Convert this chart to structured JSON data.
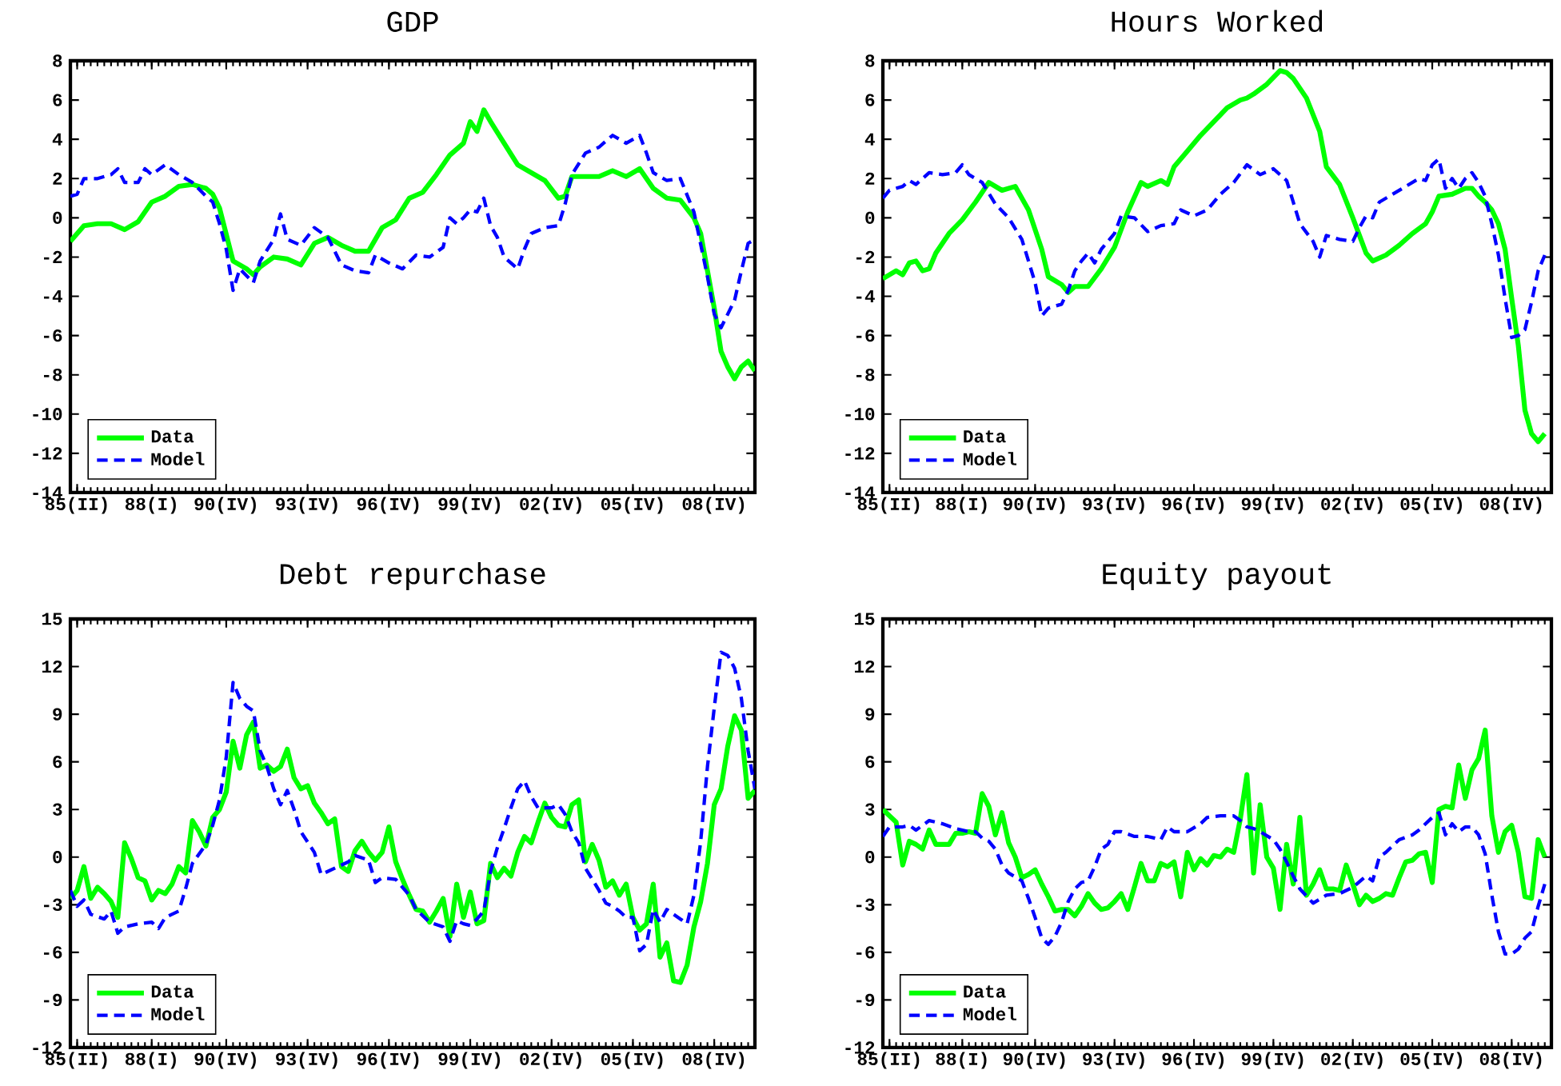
{
  "chart_data": [
    {
      "type": "line",
      "title": "GDP",
      "xlim": [
        "1985-01",
        "2010-04"
      ],
      "ylim": [
        -14,
        8
      ],
      "legend": "bottom left",
      "xticks": [
        {
          "value": "1985-04",
          "label": "85(II)"
        },
        {
          "value": "1988-01",
          "label": "88(I)"
        },
        {
          "value": "1990-10",
          "label": "90(IV)"
        },
        {
          "value": "1993-10",
          "label": "93(IV)"
        },
        {
          "value": "1996-10",
          "label": "96(IV)"
        },
        {
          "value": "1999-10",
          "label": "99(IV)"
        },
        {
          "value": "2002-10",
          "label": "02(IV)"
        },
        {
          "value": "2005-10",
          "label": "05(IV)"
        },
        {
          "value": "2008-10",
          "label": "08(IV)"
        }
      ],
      "yticks": [
        -14,
        -12,
        -10,
        -8,
        -6,
        -4,
        -2,
        0,
        2,
        4,
        6,
        8
      ],
      "series": [
        {
          "name": "Data",
          "color": "#00ff00",
          "line_style": "solid",
          "x": [
            "1985-01",
            "1985-07",
            "1986-01",
            "1986-07",
            "1987-01",
            "1987-07",
            "1988-01",
            "1988-07",
            "1989-01",
            "1989-07",
            "1990-01",
            "1990-04",
            "1990-07",
            "1991-01",
            "1991-07",
            "1991-10",
            "1992-01",
            "1992-07",
            "1993-01",
            "1993-07",
            "1994-01",
            "1994-07",
            "1995-01",
            "1995-07",
            "1996-01",
            "1996-07",
            "1997-01",
            "1997-07",
            "1998-01",
            "1998-07",
            "1999-01",
            "1999-07",
            "1999-10",
            "2000-01",
            "2000-04",
            "2000-07",
            "2001-01",
            "2001-07",
            "2002-01",
            "2002-07",
            "2003-01",
            "2003-04",
            "2003-07",
            "2004-01",
            "2004-07",
            "2005-01",
            "2005-07",
            "2006-01",
            "2006-07",
            "2007-01",
            "2007-07",
            "2008-01",
            "2008-04",
            "2008-07",
            "2008-10",
            "2009-01",
            "2009-04",
            "2009-07",
            "2009-10",
            "2010-01",
            "2010-04"
          ],
          "values": [
            -1.2,
            -0.4,
            -0.3,
            -0.3,
            -0.6,
            -0.2,
            0.8,
            1.1,
            1.6,
            1.7,
            1.5,
            1.2,
            0.5,
            -2.2,
            -2.6,
            -2.9,
            -2.5,
            -2.0,
            -2.1,
            -2.4,
            -1.3,
            -1.0,
            -1.4,
            -1.7,
            -1.7,
            -0.5,
            -0.1,
            1.0,
            1.3,
            2.2,
            3.2,
            3.8,
            4.9,
            4.4,
            5.5,
            4.9,
            3.8,
            2.7,
            2.3,
            1.9,
            1.0,
            1.1,
            2.1,
            2.1,
            2.1,
            2.4,
            2.1,
            2.5,
            1.5,
            1.0,
            0.9,
            0.0,
            -0.8,
            -2.7,
            -4.6,
            -6.8,
            -7.6,
            -8.2,
            -7.6,
            -7.3,
            -7.8
          ]
        },
        {
          "name": "Model",
          "color": "#0000ff",
          "line_style": "dashed",
          "x": [
            "1985-01",
            "1985-04",
            "1985-07",
            "1986-01",
            "1986-07",
            "1986-10",
            "1987-01",
            "1987-07",
            "1987-10",
            "1988-01",
            "1988-07",
            "1989-01",
            "1989-07",
            "1990-01",
            "1990-04",
            "1990-07",
            "1990-10",
            "1991-01",
            "1991-04",
            "1991-10",
            "1992-01",
            "1992-07",
            "1992-10",
            "1993-01",
            "1993-07",
            "1994-01",
            "1994-07",
            "1995-01",
            "1995-07",
            "1996-01",
            "1996-04",
            "1996-10",
            "1997-04",
            "1997-10",
            "1998-04",
            "1998-10",
            "1999-01",
            "1999-04",
            "1999-07",
            "1999-10",
            "2000-01",
            "2000-04",
            "2000-07",
            "2000-10",
            "2001-01",
            "2001-07",
            "2001-10",
            "2002-01",
            "2002-07",
            "2003-01",
            "2003-04",
            "2003-07",
            "2004-01",
            "2004-07",
            "2005-01",
            "2005-07",
            "2006-01",
            "2006-04",
            "2006-07",
            "2007-01",
            "2007-07",
            "2008-01",
            "2008-07",
            "2008-10",
            "2009-01",
            "2009-04",
            "2009-07",
            "2009-10",
            "2010-01",
            "2010-04"
          ],
          "values": [
            1.1,
            1.2,
            2.0,
            2.0,
            2.2,
            2.5,
            1.8,
            1.8,
            2.5,
            2.2,
            2.7,
            2.2,
            1.8,
            1.1,
            0.8,
            -0.3,
            -1.6,
            -3.7,
            -2.6,
            -3.3,
            -2.2,
            -1.1,
            0.2,
            -1.1,
            -1.4,
            -0.5,
            -1.0,
            -2.4,
            -2.7,
            -2.8,
            -1.9,
            -2.3,
            -2.6,
            -1.9,
            -2.0,
            -1.5,
            0.0,
            -0.3,
            0.0,
            0.4,
            0.3,
            1.0,
            -0.4,
            -1.0,
            -2.0,
            -2.6,
            -1.6,
            -0.8,
            -0.5,
            -0.4,
            0.7,
            2.2,
            3.3,
            3.6,
            4.2,
            3.8,
            4.2,
            3.3,
            2.3,
            1.9,
            2.0,
            0.3,
            -3.0,
            -4.9,
            -5.6,
            -4.9,
            -4.2,
            -2.7,
            -1.3,
            -1.1
          ]
        }
      ]
    },
    {
      "type": "line",
      "title": "Hours Worked",
      "xlim": [
        "1985-01",
        "2010-04"
      ],
      "ylim": [
        -14,
        8
      ],
      "legend": "bottom left",
      "xticks": [
        {
          "value": "1985-04",
          "label": "85(II)"
        },
        {
          "value": "1988-01",
          "label": "88(I)"
        },
        {
          "value": "1990-10",
          "label": "90(IV)"
        },
        {
          "value": "1993-10",
          "label": "93(IV)"
        },
        {
          "value": "1996-10",
          "label": "96(IV)"
        },
        {
          "value": "1999-10",
          "label": "99(IV)"
        },
        {
          "value": "2002-10",
          "label": "02(IV)"
        },
        {
          "value": "2005-10",
          "label": "05(IV)"
        },
        {
          "value": "2008-10",
          "label": "08(IV)"
        }
      ],
      "yticks": [
        -14,
        -12,
        -10,
        -8,
        -6,
        -4,
        -2,
        0,
        2,
        4,
        6,
        8
      ],
      "series": [
        {
          "name": "Data",
          "color": "#00ff00",
          "line_style": "solid",
          "x": [
            "1985-01",
            "1985-07",
            "1985-10",
            "1986-01",
            "1986-04",
            "1986-07",
            "1986-10",
            "1987-01",
            "1987-07",
            "1988-01",
            "1988-07",
            "1989-01",
            "1989-07",
            "1990-01",
            "1990-07",
            "1991-01",
            "1991-04",
            "1991-10",
            "1992-01",
            "1992-04",
            "1992-10",
            "1993-04",
            "1993-10",
            "1994-04",
            "1994-10",
            "1995-01",
            "1995-07",
            "1995-10",
            "1996-01",
            "1996-07",
            "1997-01",
            "1997-07",
            "1998-01",
            "1998-07",
            "1998-10",
            "1999-01",
            "1999-07",
            "2000-01",
            "2000-04",
            "2000-07",
            "2001-01",
            "2001-07",
            "2001-10",
            "2002-04",
            "2002-10",
            "2003-01",
            "2003-04",
            "2003-07",
            "2004-01",
            "2004-07",
            "2005-01",
            "2005-07",
            "2005-10",
            "2006-01",
            "2006-07",
            "2007-01",
            "2007-04",
            "2007-07",
            "2007-10",
            "2008-01",
            "2008-04",
            "2008-07",
            "2008-10",
            "2009-01",
            "2009-04",
            "2009-07",
            "2009-10",
            "2010-01"
          ],
          "values": [
            -3.1,
            -2.7,
            -2.9,
            -2.3,
            -2.2,
            -2.7,
            -2.6,
            -1.8,
            -0.8,
            -0.1,
            0.8,
            1.8,
            1.4,
            1.6,
            0.4,
            -1.6,
            -3.0,
            -3.4,
            -3.8,
            -3.5,
            -3.5,
            -2.6,
            -1.5,
            0.3,
            1.8,
            1.6,
            1.9,
            1.7,
            2.6,
            3.4,
            4.2,
            4.9,
            5.6,
            6.0,
            6.1,
            6.3,
            6.8,
            7.5,
            7.4,
            7.1,
            6.1,
            4.4,
            2.6,
            1.7,
            0.0,
            -0.9,
            -1.8,
            -2.2,
            -1.9,
            -1.4,
            -0.8,
            -0.3,
            0.3,
            1.1,
            1.2,
            1.5,
            1.5,
            1.1,
            0.8,
            0.4,
            -0.3,
            -1.6,
            -4.1,
            -6.5,
            -9.8,
            -11.0,
            -11.4,
            -11.0
          ]
        },
        {
          "name": "Model",
          "color": "#0000ff",
          "line_style": "dashed",
          "x": [
            "1985-01",
            "1985-04",
            "1985-10",
            "1986-01",
            "1986-04",
            "1986-10",
            "1987-04",
            "1987-10",
            "1988-01",
            "1988-04",
            "1988-10",
            "1989-04",
            "1989-10",
            "1990-04",
            "1990-10",
            "1991-01",
            "1991-04",
            "1991-10",
            "1992-01",
            "1992-04",
            "1992-07",
            "1992-10",
            "1993-01",
            "1993-04",
            "1993-10",
            "1994-01",
            "1994-07",
            "1995-01",
            "1995-07",
            "1996-01",
            "1996-04",
            "1996-10",
            "1997-04",
            "1997-10",
            "1998-04",
            "1998-10",
            "1999-04",
            "1999-10",
            "2000-04",
            "2000-07",
            "2000-10",
            "2001-04",
            "2001-07",
            "2001-10",
            "2002-04",
            "2002-10",
            "2003-01",
            "2003-04",
            "2003-07",
            "2003-10",
            "2004-04",
            "2004-10",
            "2005-04",
            "2005-07",
            "2005-10",
            "2006-01",
            "2006-04",
            "2006-07",
            "2006-10",
            "2007-01",
            "2007-04",
            "2007-07",
            "2007-10",
            "2008-01",
            "2008-04",
            "2008-07",
            "2008-10",
            "2009-01",
            "2009-04",
            "2009-07",
            "2009-10",
            "2010-01"
          ],
          "values": [
            1.0,
            1.4,
            1.6,
            1.9,
            1.7,
            2.3,
            2.2,
            2.3,
            2.7,
            2.2,
            1.8,
            0.7,
            0.0,
            -1.1,
            -3.3,
            -5.0,
            -4.6,
            -4.4,
            -3.7,
            -2.7,
            -2.2,
            -1.8,
            -2.3,
            -1.6,
            -0.8,
            0.1,
            0.0,
            -0.7,
            -0.4,
            -0.3,
            0.4,
            0.1,
            0.4,
            1.2,
            1.8,
            2.7,
            2.2,
            2.5,
            1.9,
            0.8,
            -0.3,
            -1.2,
            -2.0,
            -0.9,
            -1.1,
            -1.2,
            -0.5,
            0.1,
            0.0,
            0.8,
            1.2,
            1.6,
            2.0,
            1.9,
            2.7,
            3.0,
            1.5,
            2.0,
            1.5,
            2.0,
            2.3,
            1.8,
            1.1,
            -0.3,
            -1.9,
            -4.1,
            -6.1,
            -6.0,
            -5.7,
            -4.3,
            -2.7,
            -1.9
          ]
        }
      ]
    },
    {
      "type": "line",
      "title": "Debt repurchase",
      "xlim": [
        "1985-01",
        "2010-04"
      ],
      "ylim": [
        -12,
        15
      ],
      "legend": "bottom left",
      "xticks": [
        {
          "value": "1985-04",
          "label": "85(II)"
        },
        {
          "value": "1988-01",
          "label": "88(I)"
        },
        {
          "value": "1990-10",
          "label": "90(IV)"
        },
        {
          "value": "1993-10",
          "label": "93(IV)"
        },
        {
          "value": "1996-10",
          "label": "96(IV)"
        },
        {
          "value": "1999-10",
          "label": "99(IV)"
        },
        {
          "value": "2002-10",
          "label": "02(IV)"
        },
        {
          "value": "2005-10",
          "label": "05(IV)"
        },
        {
          "value": "2008-10",
          "label": "08(IV)"
        }
      ],
      "yticks": [
        -12,
        -9,
        -6,
        -3,
        0,
        3,
        6,
        9,
        12,
        15
      ],
      "series": [
        {
          "name": "Data",
          "color": "#00ff00",
          "line_style": "solid",
          "x": [
            "1985-01",
            "1985-04",
            "1985-07",
            "1985-10",
            "1986-01",
            "1986-04",
            "1986-07",
            "1986-10",
            "1987-01",
            "1987-04",
            "1987-07",
            "1987-10",
            "1988-01",
            "1988-04",
            "1988-07",
            "1988-10",
            "1989-01",
            "1989-04",
            "1989-07",
            "1989-10",
            "1990-01",
            "1990-04",
            "1990-07",
            "1990-10",
            "1991-01",
            "1991-04",
            "1991-07",
            "1991-10",
            "1992-01",
            "1992-04",
            "1992-07",
            "1992-10",
            "1993-01",
            "1993-04",
            "1993-07",
            "1993-10",
            "1994-01",
            "1994-04",
            "1994-07",
            "1994-10",
            "1995-01",
            "1995-04",
            "1995-07",
            "1995-10",
            "1996-01",
            "1996-04",
            "1996-07",
            "1996-10",
            "1997-01",
            "1997-04",
            "1997-07",
            "1997-10",
            "1998-01",
            "1998-04",
            "1998-07",
            "1998-10",
            "1999-01",
            "1999-04",
            "1999-07",
            "1999-10",
            "2000-01",
            "2000-04",
            "2000-07",
            "2000-10",
            "2001-01",
            "2001-04",
            "2001-07",
            "2001-10",
            "2002-01",
            "2002-04",
            "2002-07",
            "2002-10",
            "2003-01",
            "2003-04",
            "2003-07",
            "2003-10",
            "2004-01",
            "2004-04",
            "2004-07",
            "2004-10",
            "2005-01",
            "2005-04",
            "2005-07",
            "2005-10",
            "2006-01",
            "2006-04",
            "2006-07",
            "2006-10",
            "2007-01",
            "2007-04",
            "2007-07",
            "2007-10",
            "2008-01",
            "2008-04",
            "2008-07",
            "2008-10",
            "2009-01",
            "2009-04",
            "2009-07",
            "2009-10",
            "2010-01",
            "2010-04"
          ],
          "values": [
            -2.6,
            -2.1,
            -0.6,
            -2.6,
            -1.9,
            -2.3,
            -2.8,
            -3.8,
            0.9,
            -0.1,
            -1.3,
            -1.5,
            -2.7,
            -2.1,
            -2.3,
            -1.7,
            -0.6,
            -1.0,
            2.3,
            1.6,
            0.7,
            2.5,
            3.0,
            4.1,
            7.3,
            5.6,
            7.7,
            8.5,
            5.6,
            5.8,
            5.4,
            5.7,
            6.8,
            5.0,
            4.3,
            4.5,
            3.4,
            2.8,
            2.1,
            2.4,
            -0.6,
            -0.9,
            0.4,
            1.0,
            0.3,
            -0.2,
            0.3,
            1.9,
            -0.3,
            -1.4,
            -2.4,
            -3.3,
            -3.4,
            -4.1,
            -3.4,
            -2.6,
            -5.0,
            -1.7,
            -3.8,
            -2.2,
            -4.2,
            -4.0,
            -0.4,
            -1.3,
            -0.7,
            -1.2,
            0.3,
            1.3,
            0.9,
            2.2,
            3.4,
            2.5,
            2.0,
            1.9,
            3.3,
            3.6,
            -0.3,
            0.8,
            -0.2,
            -1.9,
            -1.5,
            -2.4,
            -1.7,
            -3.8,
            -4.6,
            -4.2,
            -1.7,
            -6.3,
            -5.4,
            -7.8,
            -7.9,
            -6.8,
            -4.4,
            -2.8,
            -0.4,
            3.3,
            4.3,
            7.0,
            8.9,
            8.0,
            3.7,
            4.2
          ]
        },
        {
          "name": "Model",
          "color": "#0000ff",
          "line_style": "dashed",
          "x": [
            "1985-01",
            "1985-04",
            "1985-07",
            "1985-10",
            "1986-04",
            "1986-07",
            "1986-10",
            "1987-01",
            "1987-07",
            "1988-01",
            "1988-04",
            "1988-07",
            "1989-01",
            "1989-04",
            "1989-07",
            "1990-01",
            "1990-04",
            "1990-07",
            "1990-10",
            "1991-01",
            "1991-04",
            "1991-07",
            "1991-10",
            "1992-01",
            "1992-04",
            "1992-07",
            "1992-10",
            "1993-01",
            "1993-04",
            "1993-07",
            "1994-01",
            "1994-04",
            "1994-10",
            "1995-04",
            "1995-07",
            "1996-01",
            "1996-04",
            "1996-07",
            "1997-01",
            "1997-07",
            "1997-10",
            "1998-04",
            "1998-10",
            "1999-01",
            "1999-04",
            "1999-07",
            "1999-10",
            "2000-01",
            "2000-04",
            "2000-07",
            "2000-10",
            "2001-01",
            "2001-04",
            "2001-07",
            "2001-10",
            "2002-01",
            "2002-04",
            "2002-07",
            "2002-10",
            "2003-01",
            "2003-04",
            "2003-07",
            "2003-10",
            "2004-01",
            "2004-04",
            "2004-07",
            "2004-10",
            "2005-01",
            "2005-04",
            "2005-07",
            "2005-10",
            "2006-01",
            "2006-04",
            "2006-07",
            "2006-10",
            "2007-01",
            "2007-04",
            "2007-07",
            "2007-10",
            "2008-01",
            "2008-04",
            "2008-07",
            "2008-10",
            "2009-01",
            "2009-04",
            "2009-07",
            "2009-10",
            "2010-01",
            "2010-04"
          ],
          "values": [
            -2.1,
            -3.1,
            -2.7,
            -3.6,
            -3.9,
            -3.4,
            -4.8,
            -4.4,
            -4.2,
            -4.1,
            -4.5,
            -3.8,
            -3.4,
            -2.0,
            -0.4,
            0.8,
            2.0,
            3.6,
            6.3,
            11.0,
            10.0,
            9.5,
            9.2,
            6.7,
            5.7,
            4.3,
            3.3,
            4.2,
            3.0,
            1.6,
            0.3,
            -1.1,
            -0.7,
            -0.3,
            0.1,
            -0.2,
            -1.6,
            -1.3,
            -1.4,
            -2.4,
            -3.3,
            -4.1,
            -4.4,
            -5.3,
            -4.0,
            -4.2,
            -4.3,
            -3.9,
            -3.4,
            -0.9,
            0.6,
            1.8,
            3.1,
            4.3,
            4.8,
            3.8,
            3.1,
            3.1,
            3.1,
            3.3,
            2.7,
            1.6,
            0.9,
            -0.7,
            -1.4,
            -2.1,
            -2.9,
            -3.1,
            -3.4,
            -3.8,
            -3.8,
            -5.9,
            -5.5,
            -3.3,
            -4.1,
            -3.3,
            -3.6,
            -3.9,
            -4.2,
            -2.4,
            1.0,
            5.7,
            9.4,
            12.9,
            12.7,
            11.9,
            10.0,
            6.7,
            4.3
          ]
        }
      ]
    },
    {
      "type": "line",
      "title": "Equity payout",
      "xlim": [
        "1985-01",
        "2010-04"
      ],
      "ylim": [
        -12,
        15
      ],
      "legend": "bottom left",
      "xticks": [
        {
          "value": "1985-04",
          "label": "85(II)"
        },
        {
          "value": "1988-01",
          "label": "88(I)"
        },
        {
          "value": "1990-10",
          "label": "90(IV)"
        },
        {
          "value": "1993-10",
          "label": "93(IV)"
        },
        {
          "value": "1996-10",
          "label": "96(IV)"
        },
        {
          "value": "1999-10",
          "label": "99(IV)"
        },
        {
          "value": "2002-10",
          "label": "02(IV)"
        },
        {
          "value": "2005-10",
          "label": "05(IV)"
        },
        {
          "value": "2008-10",
          "label": "08(IV)"
        }
      ],
      "yticks": [
        -12,
        -9,
        -6,
        -3,
        0,
        3,
        6,
        9,
        12,
        15
      ],
      "series": [
        {
          "name": "Data",
          "color": "#00ff00",
          "line_style": "solid",
          "x": [
            "1985-01",
            "1985-04",
            "1985-07",
            "1985-10",
            "1986-01",
            "1986-04",
            "1986-07",
            "1986-10",
            "1987-01",
            "1987-04",
            "1987-07",
            "1987-10",
            "1988-01",
            "1988-04",
            "1988-07",
            "1988-10",
            "1989-01",
            "1989-04",
            "1989-07",
            "1989-10",
            "1990-01",
            "1990-04",
            "1990-07",
            "1990-10",
            "1991-01",
            "1991-04",
            "1991-07",
            "1991-10",
            "1992-01",
            "1992-04",
            "1992-07",
            "1992-10",
            "1993-01",
            "1993-04",
            "1993-07",
            "1993-10",
            "1994-01",
            "1994-04",
            "1994-07",
            "1994-10",
            "1995-01",
            "1995-04",
            "1995-07",
            "1995-10",
            "1996-01",
            "1996-04",
            "1996-07",
            "1996-10",
            "1997-01",
            "1997-04",
            "1997-07",
            "1997-10",
            "1998-01",
            "1998-04",
            "1998-07",
            "1998-10",
            "1999-01",
            "1999-04",
            "1999-07",
            "1999-10",
            "2000-01",
            "2000-04",
            "2000-07",
            "2000-10",
            "2001-01",
            "2001-04",
            "2001-07",
            "2001-10",
            "2002-01",
            "2002-04",
            "2002-07",
            "2002-10",
            "2003-01",
            "2003-04",
            "2003-07",
            "2003-10",
            "2004-01",
            "2004-04",
            "2004-07",
            "2004-10",
            "2005-01",
            "2005-04",
            "2005-07",
            "2005-10",
            "2006-01",
            "2006-04",
            "2006-07",
            "2006-10",
            "2007-01",
            "2007-04",
            "2007-07",
            "2007-10",
            "2008-01",
            "2008-04",
            "2008-07",
            "2008-10",
            "2009-01",
            "2009-04",
            "2009-07",
            "2009-10",
            "2010-01"
          ],
          "values": [
            3.0,
            2.6,
            2.2,
            -0.5,
            1.0,
            0.8,
            0.5,
            1.7,
            0.8,
            0.8,
            0.8,
            1.5,
            1.5,
            1.6,
            1.5,
            4.0,
            3.2,
            1.4,
            2.8,
            0.9,
            0.0,
            -1.3,
            -1.1,
            -0.8,
            -1.7,
            -2.5,
            -3.4,
            -3.3,
            -3.3,
            -3.7,
            -3.1,
            -2.3,
            -2.9,
            -3.3,
            -3.2,
            -2.8,
            -2.3,
            -3.3,
            -1.9,
            -0.4,
            -1.5,
            -1.5,
            -0.4,
            -0.6,
            -0.3,
            -2.5,
            0.3,
            -0.8,
            -0.1,
            -0.5,
            0.1,
            0.0,
            0.5,
            0.3,
            2.4,
            5.2,
            -1.0,
            3.3,
            0.0,
            -0.7,
            -3.3,
            0.8,
            -1.7,
            2.5,
            -2.4,
            -1.7,
            -0.8,
            -2.0,
            -2.0,
            -2.1,
            -0.5,
            -1.7,
            -3.0,
            -2.4,
            -2.8,
            -2.6,
            -2.3,
            -2.4,
            -1.3,
            -0.3,
            -0.2,
            0.2,
            0.3,
            -1.6,
            3.0,
            3.2,
            3.1,
            5.8,
            3.7,
            5.5,
            6.2,
            8.0,
            2.6,
            0.3,
            1.6,
            2.0,
            0.3,
            -2.5,
            -2.6,
            1.1,
            0.0
          ]
        },
        {
          "name": "Model",
          "color": "#0000ff",
          "line_style": "dashed",
          "x": [
            "1985-01",
            "1985-04",
            "1985-10",
            "1986-01",
            "1986-04",
            "1986-10",
            "1987-04",
            "1987-10",
            "1988-04",
            "1988-07",
            "1988-10",
            "1989-01",
            "1989-04",
            "1989-07",
            "1989-10",
            "1990-04",
            "1990-07",
            "1990-10",
            "1991-01",
            "1991-04",
            "1991-07",
            "1991-10",
            "1992-01",
            "1992-04",
            "1992-07",
            "1992-10",
            "1993-01",
            "1993-04",
            "1993-07",
            "1993-10",
            "1994-01",
            "1994-07",
            "1995-01",
            "1995-07",
            "1995-10",
            "1996-01",
            "1996-07",
            "1997-01",
            "1997-04",
            "1997-10",
            "1998-04",
            "1998-07",
            "1998-10",
            "1999-01",
            "1999-04",
            "1999-10",
            "2000-01",
            "2000-04",
            "2000-07",
            "2000-10",
            "2001-04",
            "2001-10",
            "2002-04",
            "2002-10",
            "2003-04",
            "2003-07",
            "2003-10",
            "2004-01",
            "2004-04",
            "2004-07",
            "2005-01",
            "2005-04",
            "2005-10",
            "2006-01",
            "2006-04",
            "2006-07",
            "2006-10",
            "2007-01",
            "2007-04",
            "2007-07",
            "2007-10",
            "2008-01",
            "2008-04",
            "2008-07",
            "2008-10",
            "2009-01",
            "2009-04",
            "2009-07",
            "2009-10",
            "2010-01"
          ],
          "values": [
            1.3,
            1.9,
            1.9,
            2.0,
            1.7,
            2.3,
            2.1,
            1.8,
            1.6,
            1.6,
            1.2,
            1.0,
            0.5,
            -0.5,
            -1.0,
            -1.5,
            -2.6,
            -3.8,
            -5.1,
            -5.5,
            -5.0,
            -4.1,
            -2.8,
            -2.0,
            -1.6,
            -1.5,
            -0.6,
            0.5,
            0.8,
            1.6,
            1.6,
            1.3,
            1.3,
            1.1,
            1.9,
            1.6,
            1.6,
            2.1,
            2.5,
            2.6,
            2.6,
            2.3,
            1.9,
            1.8,
            1.6,
            1.1,
            0.5,
            -0.3,
            -1.2,
            -2.0,
            -2.9,
            -2.4,
            -2.3,
            -1.9,
            -1.2,
            -1.5,
            0.0,
            0.3,
            0.7,
            1.1,
            1.4,
            1.7,
            2.5,
            2.8,
            1.4,
            2.1,
            1.6,
            1.9,
            1.9,
            1.4,
            0.2,
            -2.4,
            -4.7,
            -6.1,
            -6.1,
            -5.8,
            -5.1,
            -4.7,
            -3.1,
            -1.7
          ]
        }
      ]
    }
  ]
}
